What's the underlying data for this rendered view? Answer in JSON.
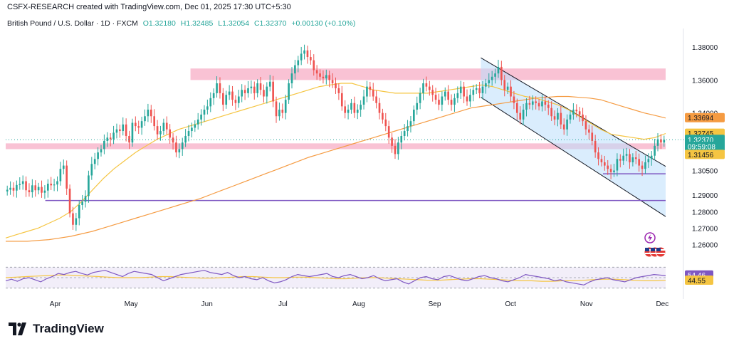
{
  "header": {
    "credit": "CSFX-RESEARCH created with TradingView.com, Dec 01, 2025 17:30 UTC+5:30"
  },
  "symbol": {
    "name": "British Pound / U.S. Dollar · 1D · FXCM",
    "open": "O1.32180",
    "high": "H1.32485",
    "low": "L1.32054",
    "close": "C1.32370",
    "change": "+0.00130 (+0.10%)"
  },
  "brand": {
    "name": "TradingView",
    "logo": "tradingview-logo-icon"
  },
  "icons": {
    "alert": "lightning-icon",
    "flags": "us-flag-icon"
  },
  "colors": {
    "up": "#26a69a",
    "down": "#ef5350",
    "zone": "#f48fb1",
    "channel": "#bbdefb",
    "level": "#7e57c2",
    "ma_fast": "#f5c542",
    "ma_slow": "#f59b42",
    "rsi": "#7e57c2"
  },
  "chart_data": {
    "type": "candlestick",
    "price_ticks": [
      "1.38000",
      "1.36000",
      "1.34000",
      "1.30500",
      "1.29000",
      "1.28000",
      "1.27000",
      "1.26000"
    ],
    "price_tick_values": [
      1.38,
      1.36,
      1.34,
      1.305,
      1.29,
      1.28,
      1.27,
      1.26
    ],
    "month_labels": [
      "Apr",
      "May",
      "Jun",
      "Jul",
      "Aug",
      "Sep",
      "Oct",
      "Nov",
      "Dec"
    ],
    "price_badges": [
      {
        "label": "1.33694",
        "value": 1.33694,
        "bg": "#f59b42",
        "fg": "#131722"
      },
      {
        "label": "1.32745",
        "value": 1.32745,
        "bg": "#f5c542",
        "fg": "#131722"
      },
      {
        "label": "1.32370",
        "value": 1.3237,
        "bg": "#26a69a",
        "fg": "#ffffff"
      },
      {
        "label": "09:59:08",
        "value": 1.3195,
        "bg": "#26a69a",
        "fg": "#ffffff"
      },
      {
        "label": "1.31456",
        "value": 1.31456,
        "bg": "#f5c542",
        "fg": "#131722"
      }
    ],
    "rsi_badges": [
      {
        "label": "54.46",
        "value": 54.46,
        "bg": "#7e57c2",
        "fg": "#ffffff"
      },
      {
        "label": "44.55",
        "value": 44.55,
        "bg": "#f5c542",
        "fg": "#131722"
      }
    ],
    "zones": [
      {
        "from": 1.36,
        "to": 1.367,
        "start": 0.28,
        "end": 1.0
      },
      {
        "from": 1.318,
        "to": 1.3215,
        "start": 0.0,
        "end": 1.0
      }
    ],
    "levels": [
      {
        "value": 1.303,
        "start": 0.905,
        "end": 1.0
      },
      {
        "value": 1.2868,
        "start": 0.06,
        "end": 1.0
      }
    ],
    "channel": {
      "start": 0.72,
      "end": 1.0,
      "upper": [
        1.3735,
        1.3075
      ],
      "lower": [
        1.3495,
        1.277
      ]
    },
    "closes": [
      1.2933,
      1.2945,
      1.2928,
      1.2962,
      1.2968,
      1.2985,
      1.293,
      1.2918,
      1.296,
      1.293,
      1.295,
      1.2915,
      1.2928,
      1.297,
      1.296,
      1.2965,
      1.2985,
      1.306,
      1.308,
      1.294,
      1.279,
      1.272,
      1.276,
      1.284,
      1.286,
      1.2895,
      1.302,
      1.309,
      1.312,
      1.316,
      1.318,
      1.323,
      1.325,
      1.324,
      1.328,
      1.33,
      1.329,
      1.333,
      1.326,
      1.322,
      1.334,
      1.332,
      1.331,
      1.335,
      1.338,
      1.342,
      1.338,
      1.332,
      1.327,
      1.329,
      1.334,
      1.33,
      1.325,
      1.322,
      1.316,
      1.318,
      1.322,
      1.326,
      1.329,
      1.331,
      1.333,
      1.336,
      1.339,
      1.342,
      1.344,
      1.349,
      1.352,
      1.358,
      1.352,
      1.345,
      1.351,
      1.353,
      1.348,
      1.346,
      1.35,
      1.354,
      1.352,
      1.355,
      1.356,
      1.352,
      1.358,
      1.354,
      1.35,
      1.356,
      1.359,
      1.347,
      1.338,
      1.342,
      1.34,
      1.348,
      1.358,
      1.364,
      1.369,
      1.372,
      1.376,
      1.378,
      1.374,
      1.372,
      1.366,
      1.364,
      1.362,
      1.361,
      1.363,
      1.36,
      1.358,
      1.355,
      1.352,
      1.344,
      1.34,
      1.342,
      1.346,
      1.34,
      1.342,
      1.345,
      1.35,
      1.356,
      1.354,
      1.35,
      1.346,
      1.34,
      1.336,
      1.332,
      1.325,
      1.32,
      1.315,
      1.322,
      1.326,
      1.329,
      1.332,
      1.335,
      1.342,
      1.346,
      1.352,
      1.358,
      1.356,
      1.354,
      1.351,
      1.348,
      1.345,
      1.35,
      1.353,
      1.348,
      1.345,
      1.349,
      1.352,
      1.356,
      1.35,
      1.347,
      1.351,
      1.354,
      1.355,
      1.352,
      1.356,
      1.358,
      1.36,
      1.362,
      1.364,
      1.368,
      1.36,
      1.354,
      1.356,
      1.35,
      1.346,
      1.34,
      1.336,
      1.342,
      1.346,
      1.345,
      1.347,
      1.346,
      1.344,
      1.347,
      1.345,
      1.343,
      1.338,
      1.336,
      1.34,
      1.333,
      1.33,
      1.336,
      1.339,
      1.342,
      1.341,
      1.339,
      1.335,
      1.33,
      1.328,
      1.323,
      1.316,
      1.312,
      1.31,
      1.308,
      1.306,
      1.304,
      1.305,
      1.312,
      1.311,
      1.314,
      1.315,
      1.31,
      1.313,
      1.312,
      1.308,
      1.306,
      1.31,
      1.312,
      1.314,
      1.32,
      1.324,
      1.322,
      1.3237
    ],
    "ma_fast": [
      1.264,
      1.266,
      1.268,
      1.27,
      1.273,
      1.276,
      1.28,
      1.286,
      1.293,
      1.3,
      1.306,
      1.311,
      1.316,
      1.32,
      1.324,
      1.327,
      1.33,
      1.332,
      1.334,
      1.336,
      1.338,
      1.34,
      1.342,
      1.344,
      1.346,
      1.348,
      1.35,
      1.352,
      1.354,
      1.356,
      1.357,
      1.358,
      1.358,
      1.356,
      1.354,
      1.353,
      1.352,
      1.352,
      1.352,
      1.352,
      1.353,
      1.354,
      1.355,
      1.356,
      1.357,
      1.356,
      1.354,
      1.352,
      1.35,
      1.349,
      1.347,
      1.345,
      1.342,
      1.338,
      1.334,
      1.33,
      1.327,
      1.326,
      1.325,
      1.324,
      1.325,
      1.3275
    ],
    "ma_slow": [
      1.262,
      1.262,
      1.262,
      1.2625,
      1.263,
      1.264,
      1.265,
      1.2665,
      1.268,
      1.27,
      1.272,
      1.274,
      1.276,
      1.278,
      1.28,
      1.282,
      1.284,
      1.286,
      1.288,
      1.2905,
      1.293,
      1.2955,
      1.298,
      1.3005,
      1.303,
      1.3055,
      1.308,
      1.3105,
      1.313,
      1.315,
      1.317,
      1.319,
      1.321,
      1.323,
      1.325,
      1.327,
      1.329,
      1.331,
      1.333,
      1.335,
      1.337,
      1.339,
      1.341,
      1.343,
      1.344,
      1.345,
      1.346,
      1.347,
      1.348,
      1.349,
      1.3495,
      1.35,
      1.35,
      1.3495,
      1.349,
      1.348,
      1.346,
      1.344,
      1.342,
      1.34,
      1.3385,
      1.3369
    ],
    "rsi": [
      44,
      47,
      43,
      48,
      50,
      46,
      42,
      48,
      52,
      58,
      56,
      60,
      62,
      58,
      55,
      60,
      62,
      64,
      60,
      56,
      52,
      58,
      62,
      60,
      58,
      56,
      50,
      44,
      48,
      52,
      56,
      58,
      60,
      62,
      64,
      60,
      58,
      56,
      60,
      54,
      50,
      52,
      48,
      46,
      50,
      44,
      40,
      42,
      46,
      52,
      56,
      54,
      52,
      54,
      56,
      58,
      52,
      50,
      54,
      56,
      52,
      48,
      50,
      54,
      48,
      44,
      46,
      48,
      42,
      38,
      44,
      50,
      52,
      48,
      46,
      52,
      54,
      50,
      46,
      44,
      48,
      52,
      54,
      50,
      48,
      44,
      42,
      46,
      50,
      56,
      54,
      52,
      50,
      48,
      44,
      46,
      42,
      40,
      38,
      36,
      42,
      46,
      48,
      50,
      46,
      44,
      42,
      46,
      50,
      52,
      54,
      56,
      55,
      54
    ],
    "rsi_ma": [
      50,
      51,
      52,
      53,
      54,
      55,
      55,
      54,
      53,
      52,
      51,
      50,
      50,
      50,
      51,
      52,
      52,
      51,
      50,
      49,
      49,
      50,
      51,
      52,
      52,
      51,
      50,
      50,
      51,
      51,
      50,
      49,
      48,
      48,
      49,
      50,
      50,
      49,
      48,
      47,
      46,
      45,
      45,
      46,
      47,
      48,
      48,
      47,
      46,
      45,
      44,
      44,
      43,
      43,
      44,
      44,
      45,
      46,
      47,
      47,
      46,
      45,
      44,
      44,
      45
    ]
  }
}
